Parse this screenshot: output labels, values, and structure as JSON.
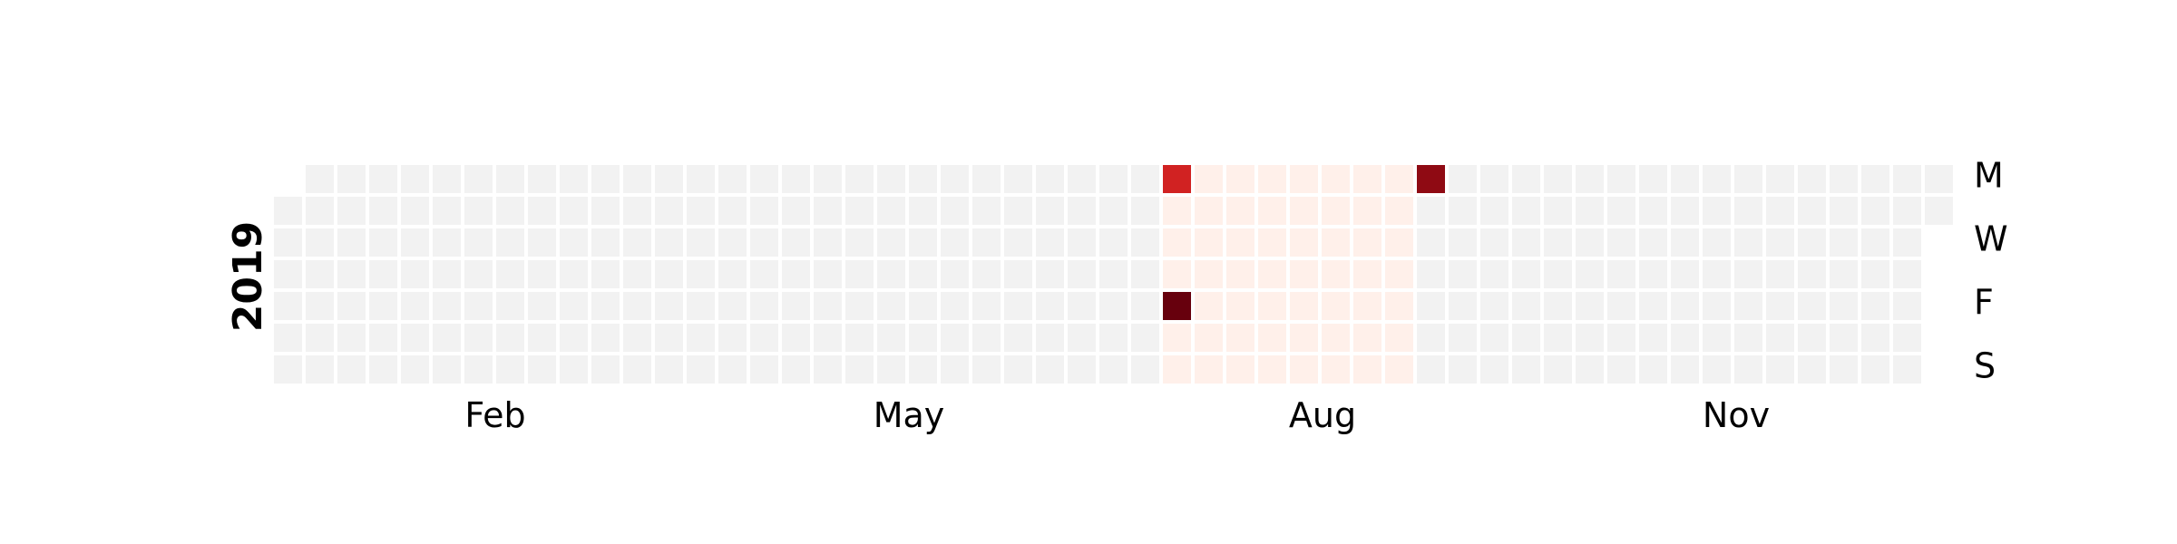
{
  "chart_data": {
    "type": "heatmap",
    "title": "",
    "year": "2019",
    "year_start": "2019-01-01",
    "year_end": "2019-12-31",
    "month_labels": [
      "Feb",
      "May",
      "Aug",
      "Nov"
    ],
    "day_labels": [
      "M",
      "W",
      "F",
      "S"
    ],
    "empty_color": "#f2f2f2",
    "colormap": "Reds",
    "colormap_stops": [
      "#fff5f0",
      "#fcbba1",
      "#fb6a4a",
      "#cb181d",
      "#67000d"
    ],
    "value_range": [
      0,
      1
    ],
    "nonzero_values": [
      {
        "date": "2019-07-15",
        "value": 0.72
      },
      {
        "date": "2019-07-19",
        "value": 1.0
      },
      {
        "date": "2019-09-09",
        "value": 0.9
      }
    ],
    "low_value_ranges": [
      {
        "start": "2019-07-16",
        "end": "2019-09-08",
        "value": 0.02
      }
    ]
  }
}
